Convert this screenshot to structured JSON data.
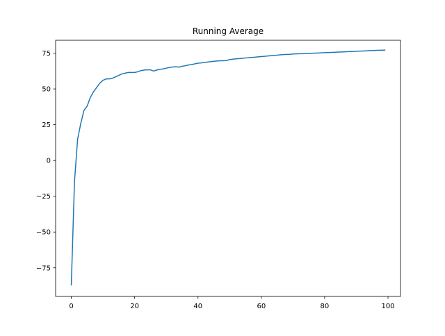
{
  "chart_data": {
    "type": "line",
    "title": "Running Average",
    "xlabel": "",
    "ylabel": "",
    "xlim": [
      -4.95,
      103.95
    ],
    "ylim": [
      -95,
      84
    ],
    "x_ticks": [
      0,
      20,
      40,
      60,
      80,
      100
    ],
    "y_ticks": [
      -75,
      -50,
      -25,
      0,
      25,
      50,
      75
    ],
    "x_tick_labels": [
      "0",
      "20",
      "40",
      "60",
      "80",
      "100"
    ],
    "y_tick_labels": [
      "−75",
      "−50",
      "−25",
      "0",
      "25",
      "50",
      "75"
    ],
    "grid": false,
    "legend": "none",
    "line_color": "#1f77b4",
    "series": [
      {
        "x": [
          0,
          1,
          2,
          3,
          4,
          5,
          6,
          7,
          8,
          9,
          10,
          11,
          12,
          13,
          14,
          15,
          16,
          17,
          18,
          19,
          20,
          21,
          22,
          23,
          24,
          25,
          26,
          27,
          28,
          29,
          30,
          31,
          32,
          33,
          34,
          35,
          36,
          37,
          38,
          39,
          40,
          41,
          42,
          43,
          44,
          45,
          46,
          47,
          48,
          49,
          50,
          51,
          52,
          53,
          54,
          55,
          56,
          57,
          58,
          59,
          60,
          61,
          62,
          63,
          64,
          65,
          66,
          67,
          68,
          69,
          70,
          71,
          72,
          73,
          74,
          75,
          76,
          77,
          78,
          79,
          80,
          81,
          82,
          83,
          84,
          85,
          86,
          87,
          88,
          89,
          90,
          91,
          92,
          93,
          94,
          95,
          96,
          97,
          98,
          99
        ],
        "y": [
          -87,
          -15,
          15,
          26,
          35,
          38,
          44,
          48,
          51,
          54,
          56,
          57,
          57,
          57.5,
          58.5,
          59.5,
          60.5,
          61,
          61.5,
          61.5,
          61.5,
          62,
          62.8,
          63.2,
          63.3,
          63.3,
          62.5,
          63.2,
          63.7,
          64,
          64.5,
          65,
          65.3,
          65.5,
          65.2,
          65.8,
          66.2,
          66.7,
          67,
          67.5,
          68,
          68.2,
          68.5,
          68.8,
          69,
          69.3,
          69.5,
          69.7,
          69.7,
          69.8,
          70.5,
          70.8,
          71,
          71.2,
          71.4,
          71.6,
          71.8,
          72,
          72.2,
          72.4,
          72.6,
          72.8,
          73,
          73.2,
          73.4,
          73.6,
          73.8,
          74,
          74.1,
          74.2,
          74.4,
          74.5,
          74.6,
          74.6,
          74.7,
          74.8,
          74.9,
          75,
          75.1,
          75.2,
          75.3,
          75.4,
          75.5,
          75.6,
          75.7,
          75.8,
          75.9,
          76,
          76.1,
          76.2,
          76.3,
          76.4,
          76.5,
          76.6,
          76.7,
          76.8,
          76.9,
          77,
          77,
          77.1
        ]
      }
    ]
  }
}
